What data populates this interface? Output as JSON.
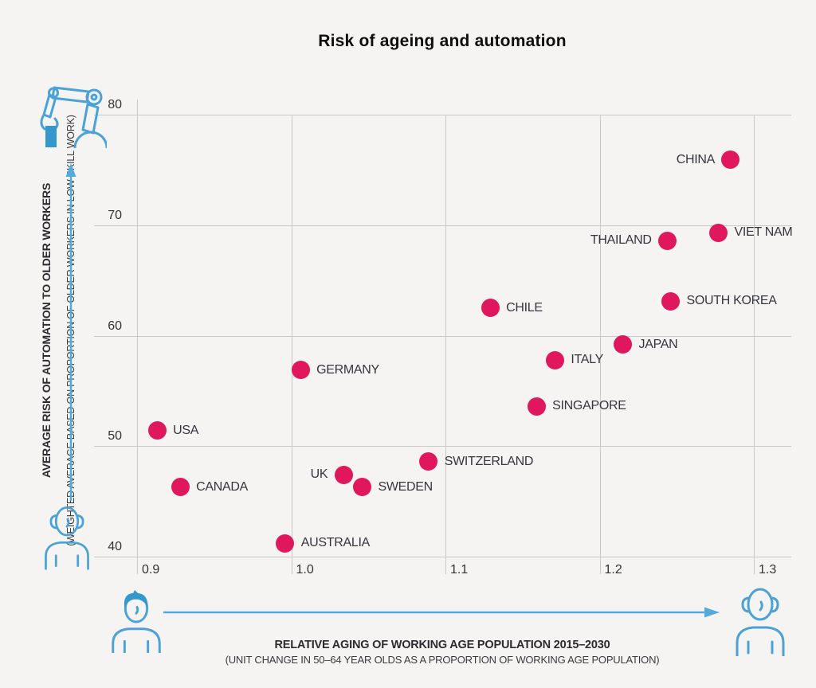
{
  "title": "Risk of ageing and automation",
  "colors": {
    "dot": "#e0175c",
    "grid": "#c9c9c9",
    "icon_blue": "#4aa2d6",
    "background": "#f5f4f2",
    "label_text": "#35353f"
  },
  "y_axis": {
    "title_bold": "AVERAGE RISK OF AUTOMATION TO OLDER WORKERS",
    "title_sub": "(WEIGHTED AVERAGE BASED ON PROPORTION OF OLDER WORKERS IN LOW SKILL WORK)",
    "ticks": [
      80,
      70,
      60,
      50,
      40
    ]
  },
  "x_axis": {
    "title_bold": "RELATIVE AGING OF WORKING AGE POPULATION 2015–2030",
    "title_sub": "(UNIT CHANGE IN 50–64 YEAR OLDS AS A PROPORTION OF WORKING AGE POPULATION)",
    "ticks": [
      {
        "label": "0.9",
        "value": 0.9
      },
      {
        "label": "1.0",
        "value": 1.0
      },
      {
        "label": "1.1",
        "value": 1.1
      },
      {
        "label": "1.2",
        "value": 1.2
      },
      {
        "label": "1.3",
        "value": 1.3
      }
    ]
  },
  "icons": {
    "top_left": "robot-arm-icon",
    "y_axis_bottom": "older-worker-icon",
    "x_axis_left": "young-worker-icon",
    "x_axis_right": "older-worker-icon",
    "arrows": [
      "y-axis-up-arrow",
      "x-axis-right-arrow"
    ]
  },
  "chart_data": {
    "type": "scatter",
    "title": "Risk of ageing and automation",
    "xlabel": "RELATIVE AGING OF WORKING AGE POPULATION 2015–2030 (UNIT CHANGE IN 50–64 YEAR OLDS AS A PROPORTION OF WORKING AGE POPULATION)",
    "ylabel": "AVERAGE RISK OF AUTOMATION TO OLDER WORKERS (WEIGHTED AVERAGE BASED ON PROPORTION OF OLDER WORKERS IN LOW SKILL WORK)",
    "xlim": [
      0.9,
      1.3
    ],
    "ylim": [
      40,
      80
    ],
    "grid": true,
    "legend": false,
    "points": [
      {
        "label": "CHINA",
        "x": 1.285,
        "y": 75.9,
        "label_side": "left"
      },
      {
        "label": "VIET NAM",
        "x": 1.277,
        "y": 69.3,
        "label_side": "right"
      },
      {
        "label": "THAILAND",
        "x": 1.244,
        "y": 68.6,
        "label_side": "left"
      },
      {
        "label": "SOUTH KOREA",
        "x": 1.246,
        "y": 63.1,
        "label_side": "right"
      },
      {
        "label": "CHILE",
        "x": 1.129,
        "y": 62.5,
        "label_side": "right"
      },
      {
        "label": "JAPAN",
        "x": 1.215,
        "y": 59.2,
        "label_side": "right"
      },
      {
        "label": "ITALY",
        "x": 1.171,
        "y": 57.8,
        "label_side": "right"
      },
      {
        "label": "GERMANY",
        "x": 1.006,
        "y": 56.9,
        "label_side": "right"
      },
      {
        "label": "SINGAPORE",
        "x": 1.159,
        "y": 53.6,
        "label_side": "right"
      },
      {
        "label": "USA",
        "x": 0.913,
        "y": 51.4,
        "label_side": "right"
      },
      {
        "label": "SWITZERLAND",
        "x": 1.089,
        "y": 48.6,
        "label_side": "right"
      },
      {
        "label": "UK",
        "x": 1.034,
        "y": 47.4,
        "label_side": "left"
      },
      {
        "label": "SWEDEN",
        "x": 1.046,
        "y": 46.3,
        "label_side": "right"
      },
      {
        "label": "CANADA",
        "x": 0.928,
        "y": 46.3,
        "label_side": "right"
      },
      {
        "label": "AUSTRALIA",
        "x": 0.996,
        "y": 41.2,
        "label_side": "right"
      }
    ]
  }
}
